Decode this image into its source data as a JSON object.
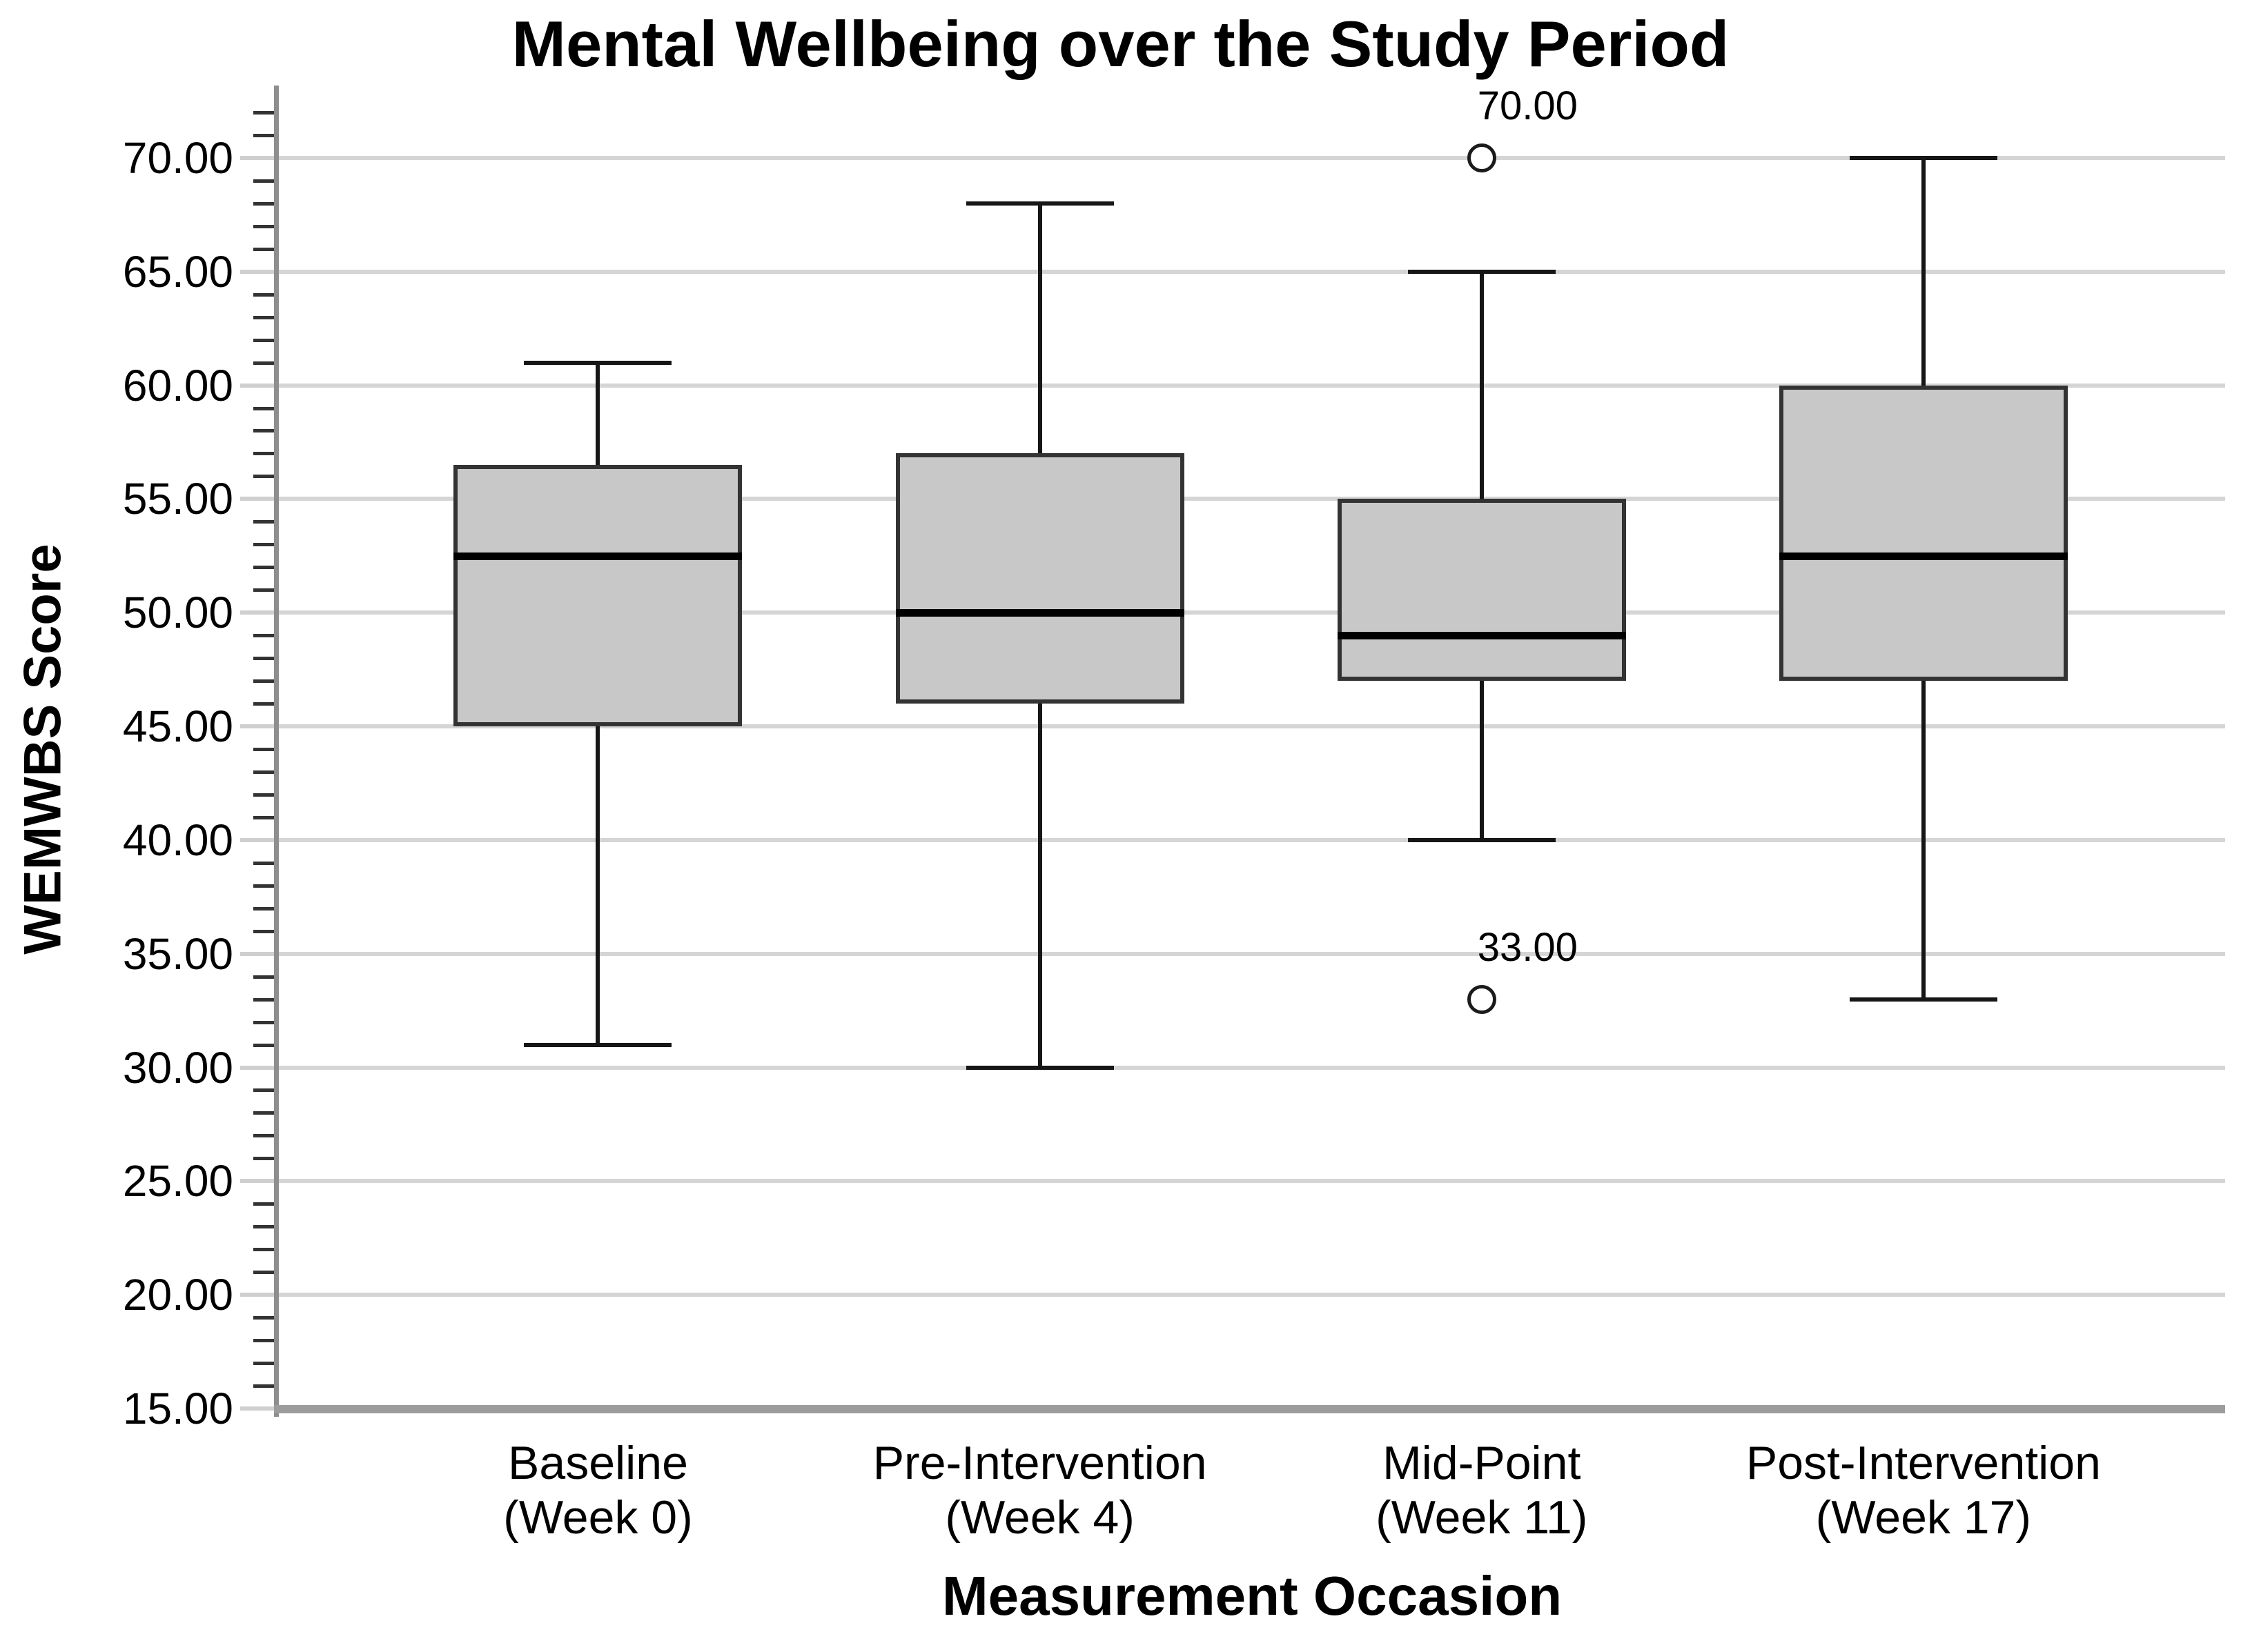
{
  "chart_data": {
    "type": "boxplot",
    "title": "Mental Wellbeing over the Study Period",
    "xlabel": "Measurement Occasion",
    "ylabel": "WEMWBS Score",
    "ylim": [
      15,
      73
    ],
    "grid": "horizontal major gridlines every 5 units, minor ticks every 1 unit, no legend",
    "yticks": [
      {
        "value": 15,
        "label": "15.00"
      },
      {
        "value": 20,
        "label": "20.00"
      },
      {
        "value": 25,
        "label": "25.00"
      },
      {
        "value": 30,
        "label": "30.00"
      },
      {
        "value": 35,
        "label": "35.00"
      },
      {
        "value": 40,
        "label": "40.00"
      },
      {
        "value": 45,
        "label": "45.00"
      },
      {
        "value": 50,
        "label": "50.00"
      },
      {
        "value": 55,
        "label": "55.00"
      },
      {
        "value": 60,
        "label": "60.00"
      },
      {
        "value": 65,
        "label": "65.00"
      },
      {
        "value": 70,
        "label": "70.00"
      }
    ],
    "categories": [
      {
        "line1": "Baseline",
        "line2": "(Week 0)"
      },
      {
        "line1": "Pre-Intervention",
        "line2": "(Week 4)"
      },
      {
        "line1": "Mid-Point",
        "line2": "(Week 11)"
      },
      {
        "line1": "Post-Intervention",
        "line2": "(Week 17)"
      }
    ],
    "boxes": [
      {
        "category": "Baseline (Week 0)",
        "whisker_low": 31,
        "q1": 45,
        "median": 52.5,
        "q3": 56.5,
        "whisker_high": 61,
        "outliers": []
      },
      {
        "category": "Pre-Intervention (Week 4)",
        "whisker_low": 30,
        "q1": 46,
        "median": 50,
        "q3": 57,
        "whisker_high": 68,
        "outliers": []
      },
      {
        "category": "Mid-Point (Week 11)",
        "whisker_low": 40,
        "q1": 47,
        "median": 49,
        "q3": 55,
        "whisker_high": 65,
        "outliers": [
          {
            "value": 70,
            "label": "70.00"
          },
          {
            "value": 33,
            "label": "33.00"
          }
        ]
      },
      {
        "category": "Post-Intervention (Week 17)",
        "whisker_low": 33,
        "q1": 47,
        "median": 52.5,
        "q3": 60,
        "whisker_high": 70,
        "outliers": []
      }
    ],
    "colors": {
      "background": "#ffffff",
      "box_fill": "#c8c8c8",
      "box_border": "#333333",
      "median": "#000000",
      "whisker": "#161616",
      "gridline": "#d5d5d5",
      "major_tick_stub": "#cfcfcf",
      "minor_tick": "#333333",
      "y_axis_line": "#8e8e8e",
      "x_axis_line": "#9c9c9c",
      "text": "#000000"
    }
  }
}
